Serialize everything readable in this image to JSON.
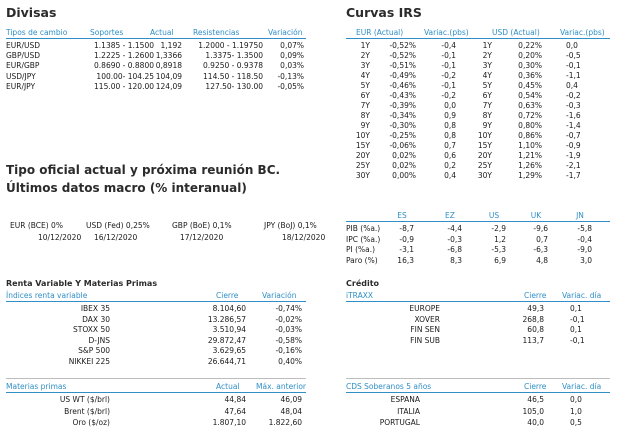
{
  "divisas": {
    "title": "Divisas",
    "headers": [
      "Tipos de cambio",
      "Soportes",
      "Actual",
      "Resistencias",
      "Variación"
    ],
    "rows": [
      {
        "pair": "EUR/USD",
        "soportes": "1.1385 - 1.1500",
        "actual": "1,192",
        "resist": "1.2000 - 1.19750",
        "var": "0,07%"
      },
      {
        "pair": "GBP/USD",
        "soportes": "1.2225 - 1.2600",
        "actual": "1,3366",
        "resist": "1.3375- 1.3500",
        "var": "0,09%"
      },
      {
        "pair": "EUR/GBP",
        "soportes": "0.8690 - 0.8800",
        "actual": "0,8918",
        "resist": "0.9250 - 0.9378",
        "var": "0,03%"
      },
      {
        "pair": "USD/JPY",
        "soportes": "100.00- 104.25",
        "actual": "104,09",
        "resist": "114.50 - 118.50",
        "var": "-0,13%"
      },
      {
        "pair": "EUR/JPY",
        "soportes": "115.00 - 120.00",
        "actual": "124,09",
        "resist": "127.50- 130.00",
        "var": "-0,05%"
      }
    ]
  },
  "curvas": {
    "title": "Curvas IRS",
    "headers": [
      "EUR (Actual)",
      "Variac.(pbs)",
      "USD (Actual)",
      "Variac.(pbs)"
    ],
    "rows": [
      {
        "t": "1Y",
        "eur": "-0,52%",
        "ev": "-0,4",
        "t2": "1Y",
        "usd": "0,22%",
        "uv": "0,0"
      },
      {
        "t": "2Y",
        "eur": "-0,52%",
        "ev": "-0,1",
        "t2": "2Y",
        "usd": "0,20%",
        "uv": "-0,5"
      },
      {
        "t": "3Y",
        "eur": "-0,51%",
        "ev": "-0,1",
        "t2": "3Y",
        "usd": "0,30%",
        "uv": "-0,1"
      },
      {
        "t": "4Y",
        "eur": "-0,49%",
        "ev": "-0,2",
        "t2": "4Y",
        "usd": "0,36%",
        "uv": "-1,1"
      },
      {
        "t": "5Y",
        "eur": "-0,46%",
        "ev": "-0,1",
        "t2": "5Y",
        "usd": "0,45%",
        "uv": "0,4"
      },
      {
        "t": "6Y",
        "eur": "-0,43%",
        "ev": "-0,2",
        "t2": "6Y",
        "usd": "0,54%",
        "uv": "-0,2"
      },
      {
        "t": "7Y",
        "eur": "-0,39%",
        "ev": "0,0",
        "t2": "7Y",
        "usd": "0,63%",
        "uv": "-0,3"
      },
      {
        "t": "8Y",
        "eur": "-0,34%",
        "ev": "0,9",
        "t2": "8Y",
        "usd": "0,72%",
        "uv": "-1,6"
      },
      {
        "t": "9Y",
        "eur": "-0,30%",
        "ev": "0,8",
        "t2": "9Y",
        "usd": "0,80%",
        "uv": "-1,4"
      },
      {
        "t": "10Y",
        "eur": "-0,25%",
        "ev": "0,8",
        "t2": "10Y",
        "usd": "0,86%",
        "uv": "-0,7"
      },
      {
        "t": "15Y",
        "eur": "-0,06%",
        "ev": "0,7",
        "t2": "15Y",
        "usd": "1,10%",
        "uv": "-0,9"
      },
      {
        "t": "20Y",
        "eur": "0,02%",
        "ev": "0,6",
        "t2": "20Y",
        "usd": "1,21%",
        "uv": "-1,9"
      },
      {
        "t": "25Y",
        "eur": "0,02%",
        "ev": "0,2",
        "t2": "25Y",
        "usd": "1,26%",
        "uv": "-2,1"
      },
      {
        "t": "30Y",
        "eur": "0,00%",
        "ev": "0,4",
        "t2": "30Y",
        "usd": "1,29%",
        "uv": "-1,7"
      }
    ]
  },
  "tipo": {
    "title_line1": "Tipo oficial actual y próxima reunión BC.",
    "title_line2": "Últimos datos macro (% interanual)",
    "rates": [
      {
        "label": "EUR (BCE) 0%",
        "date": "10/12/2020"
      },
      {
        "label": "USD (Fed) 0,25%",
        "date": "16/12/2020"
      },
      {
        "label": "GBP (BoE) 0,1%",
        "date": "17/12/2020"
      },
      {
        "label": "JPY (BoJ) 0,1%",
        "date": "18/12/2020"
      }
    ]
  },
  "macro": {
    "headers": [
      "ES",
      "EZ",
      "US",
      "UK",
      "JN"
    ],
    "rows": [
      {
        "label": "PIB (%a.)",
        "vals": [
          "-8,7",
          "-4,4",
          "-2,9",
          "-9,6",
          "-5,8"
        ]
      },
      {
        "label": "IPC (%a.)",
        "vals": [
          "-0,9",
          "-0,3",
          "1,2",
          "0,7",
          "-0,4"
        ]
      },
      {
        "label": "PI (%a.)",
        "vals": [
          "-3,1",
          "-6,8",
          "-5,3",
          "-6,3",
          "-9,0"
        ]
      },
      {
        "label": "Paro (%)",
        "vals": [
          "16,3",
          "8,3",
          "6,9",
          "4,8",
          "3,0"
        ]
      }
    ]
  },
  "renta": {
    "title": "Renta Variable Y Materias Primas",
    "headers": [
      "Índices renta variable",
      "Cierre",
      "Variación"
    ],
    "rows": [
      {
        "name": "IBEX 35",
        "cierre": "8.104,60",
        "var": "-0,74%"
      },
      {
        "name": "DAX 30",
        "cierre": "13.286,57",
        "var": "-0,02%"
      },
      {
        "name": "STOXX 50",
        "cierre": "3.510,94",
        "var": "-0,03%"
      },
      {
        "name": "D-JNS",
        "cierre": "29.872,47",
        "var": "-0,58%"
      },
      {
        "name": "S&P 500",
        "cierre": "3.629,65",
        "var": "-0,16%"
      },
      {
        "name": "NIKKEI 225",
        "cierre": "26.644,71",
        "var": "0,40%"
      }
    ]
  },
  "materias": {
    "headers": [
      "Materias primas",
      "Actual",
      "Máx. anterior"
    ],
    "rows": [
      {
        "name": "US WT ($/brl)",
        "actual": "44,84",
        "max": "46,09"
      },
      {
        "name": "Brent ($/brl)",
        "actual": "47,64",
        "max": "48,04"
      },
      {
        "name": "Oro ($/oz)",
        "actual": "1.807,10",
        "max": "1.822,60"
      }
    ]
  },
  "credito": {
    "title": "Crédito",
    "headers": [
      "iTRAXX",
      "Cierre",
      "Variac. día"
    ],
    "rows": [
      {
        "name": "EUROPE",
        "cierre": "49,3",
        "var": "0,1"
      },
      {
        "name": "XOVER",
        "cierre": "268,8",
        "var": "-0,1"
      },
      {
        "name": "FIN SEN",
        "cierre": "60,8",
        "var": "0,1"
      },
      {
        "name": "FIN SUB",
        "cierre": "113,7",
        "var": "-0,1"
      }
    ]
  },
  "cds": {
    "headers": [
      "CDS Soberanos 5 años",
      "Cierre",
      "Variac. día"
    ],
    "rows": [
      {
        "name": "ESPANA",
        "cierre": "46,5",
        "var": "0,0"
      },
      {
        "name": "ITALIA",
        "cierre": "105,0",
        "var": "1,0"
      },
      {
        "name": "PORTUGAL",
        "cierre": "40,0",
        "var": "0,5"
      }
    ]
  }
}
